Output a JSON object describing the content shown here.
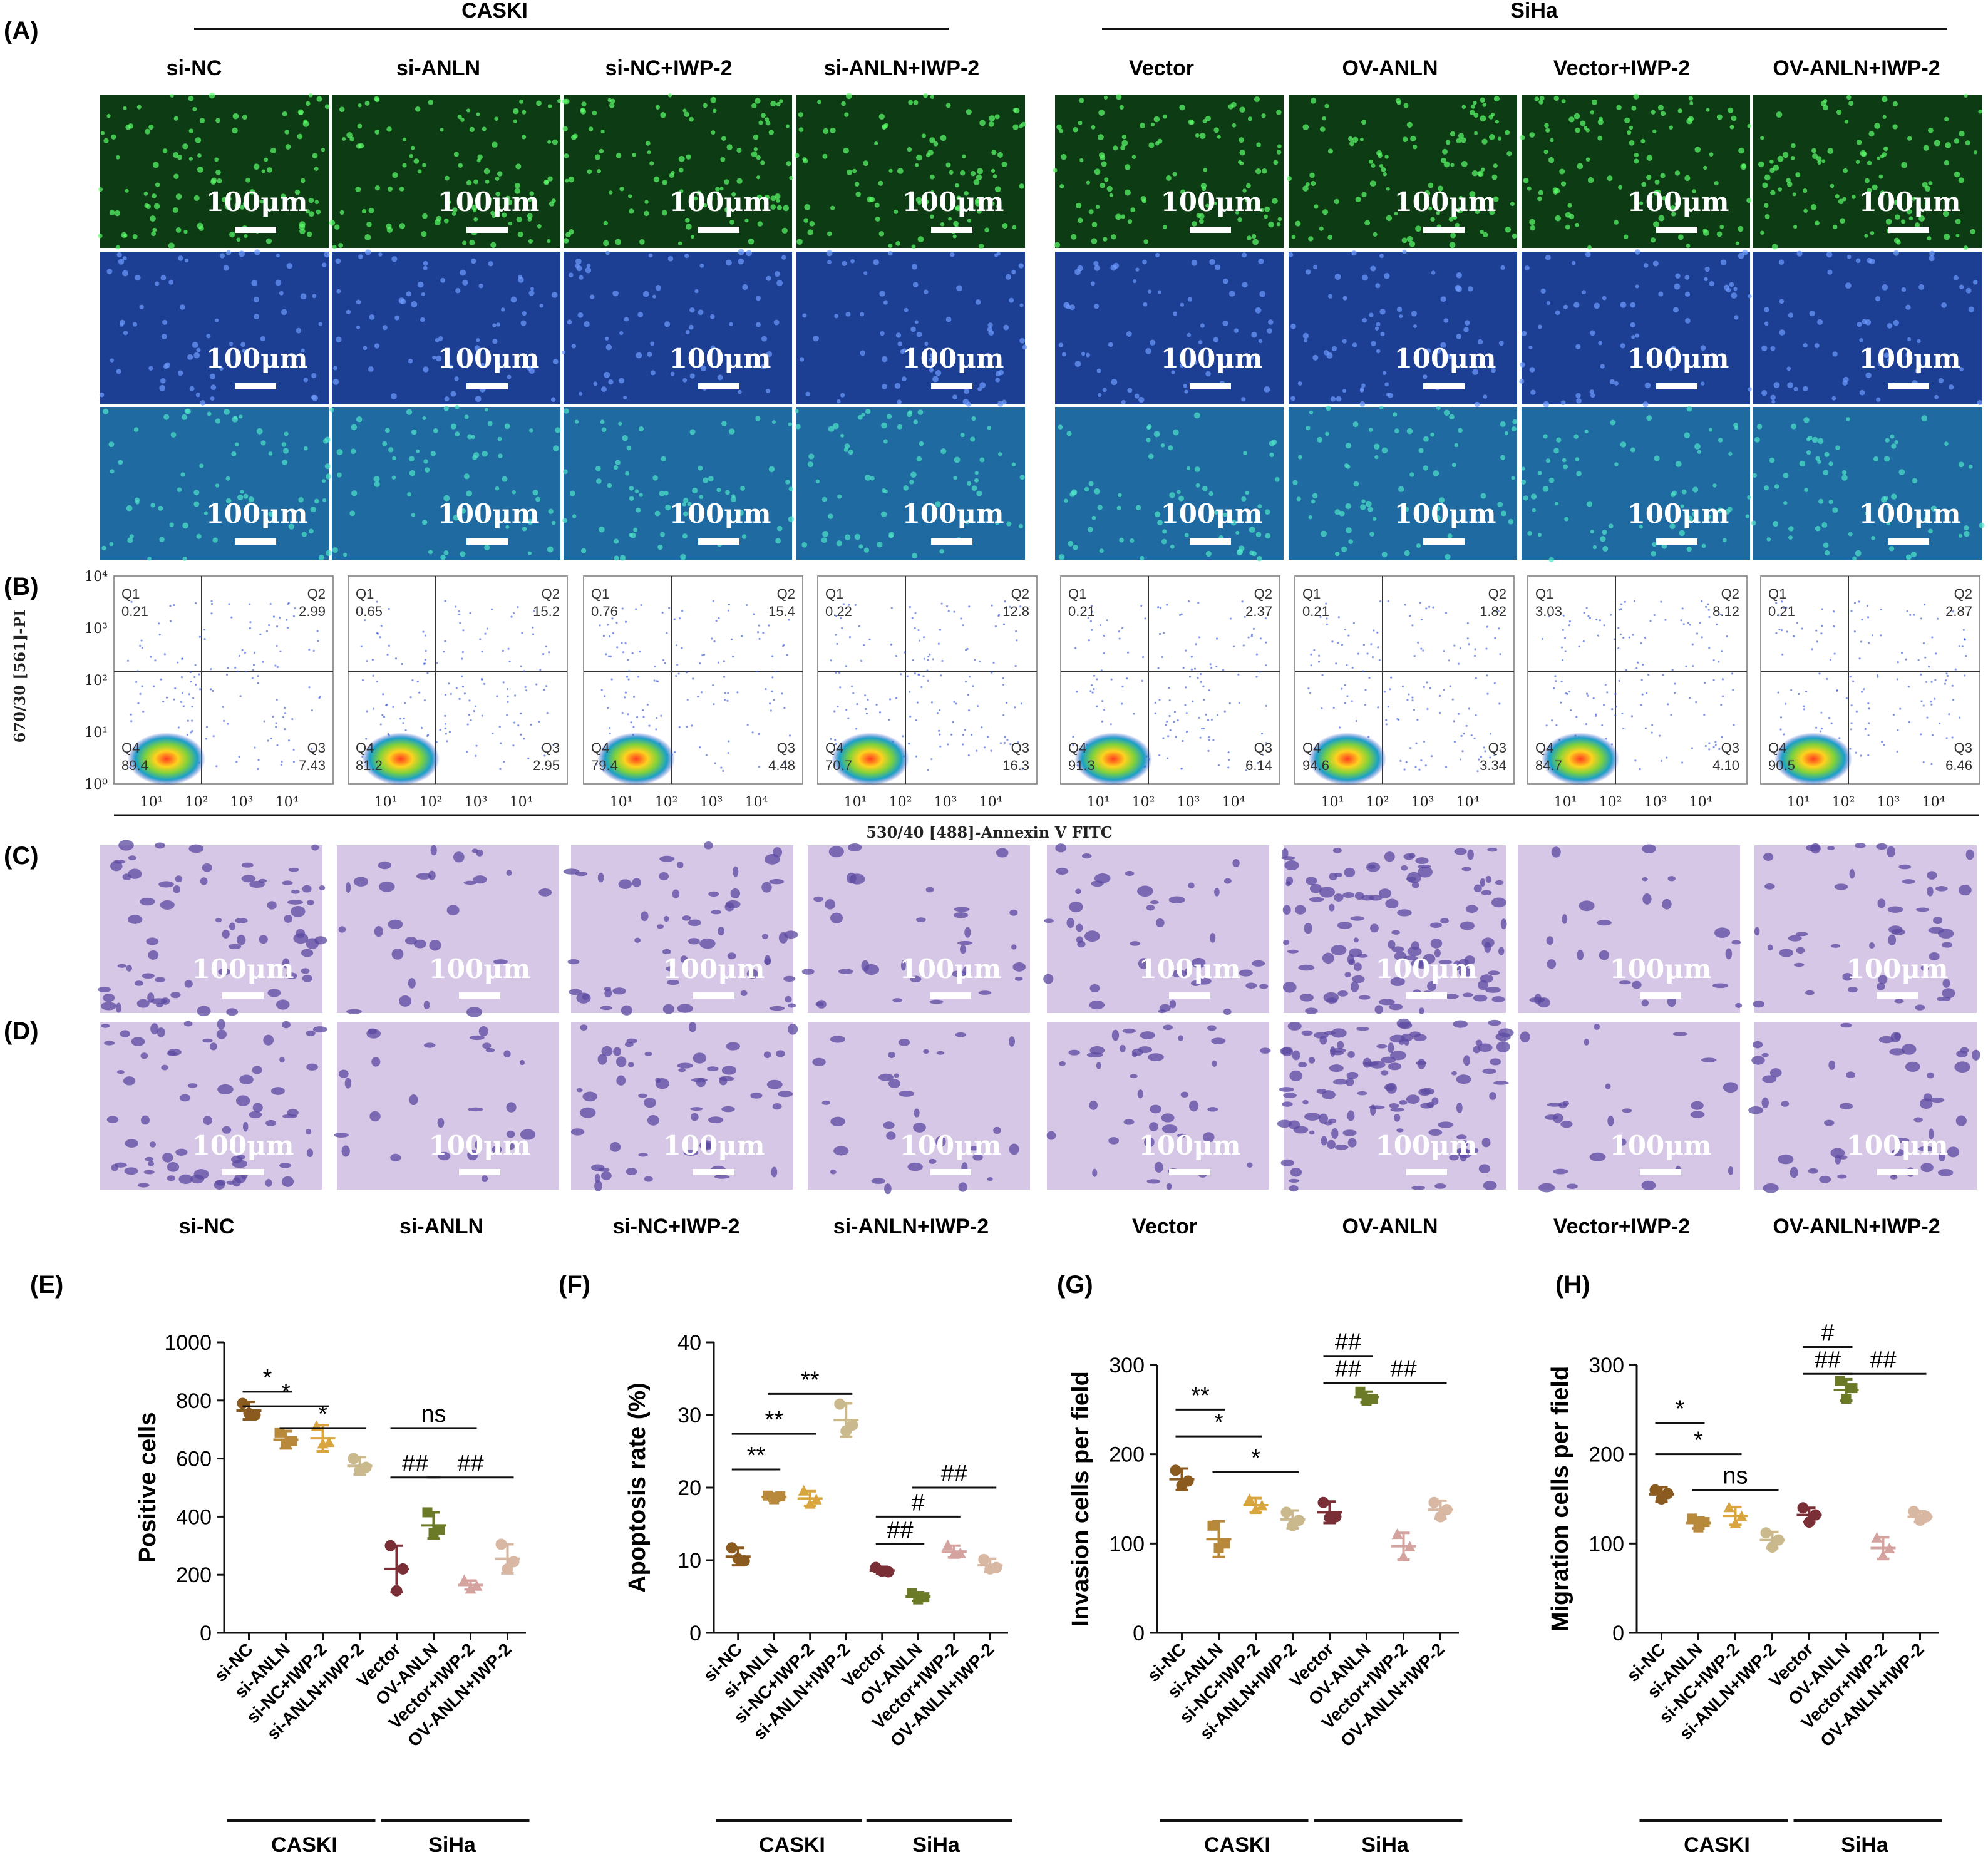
{
  "panel_labels": {
    "A": "(A)",
    "B": "(B)",
    "C": "(C)",
    "D": "(D)",
    "E": "(E)",
    "F": "(F)",
    "G": "(G)",
    "H": "(H)"
  },
  "cell_lines": {
    "left": "CASKI",
    "right": "SiHa"
  },
  "conditions": [
    "si-NC",
    "si-ANLN",
    "si-NC+IWP-2",
    "si-ANLN+IWP-2",
    "Vector",
    "OV-ANLN",
    "Vector+IWP-2",
    "OV-ANLN+IWP-2"
  ],
  "scale_bar": "100μm",
  "flow": {
    "y_axis_label": "670/30 [561]-PI",
    "x_axis_label": "530/40 [488]-Annexin V FITC",
    "y_ticks": [
      "10⁰",
      "10¹",
      "10²",
      "10³",
      "10⁴"
    ],
    "x_ticks": [
      "10¹",
      "10²",
      "10³",
      "10⁴"
    ],
    "quadrant_names": [
      "Q1",
      "Q2",
      "Q3",
      "Q4"
    ],
    "plots": [
      {
        "Q1": "0.21",
        "Q2": "2.99",
        "Q3": "7.43",
        "Q4": "89.4"
      },
      {
        "Q1": "0.65",
        "Q2": "15.2",
        "Q3": "2.95",
        "Q4": "81.2"
      },
      {
        "Q1": "0.76",
        "Q2": "15.4",
        "Q3": "4.48",
        "Q4": "79.4"
      },
      {
        "Q1": "0.22",
        "Q2": "12.8",
        "Q3": "16.3",
        "Q4": "70.7"
      },
      {
        "Q1": "0.21",
        "Q2": "2.37",
        "Q3": "6.14",
        "Q4": "91.3"
      },
      {
        "Q1": "0.21",
        "Q2": "1.82",
        "Q3": "3.34",
        "Q4": "94.6"
      },
      {
        "Q1": "3.03",
        "Q2": "8.12",
        "Q3": "4.10",
        "Q4": "84.7"
      },
      {
        "Q1": "0.21",
        "Q2": "2.87",
        "Q3": "6.46",
        "Q4": "90.5"
      }
    ]
  },
  "colors": {
    "group_colors": [
      "#8B5A1F",
      "#B8893A",
      "#D9A53F",
      "#C9B98C",
      "#7A2E36",
      "#6B7A26",
      "#D4A3A0",
      "#D9B8A3"
    ],
    "fluor_green": "#0d3b14",
    "fluor_blue": "#1c3f94",
    "fluor_merge": "#1f6aa0",
    "stain_bg": "#d6c7e6",
    "stain_cell": "#5b4aa0"
  },
  "chart_data": [
    {
      "id": "E",
      "type": "scatter",
      "ylabel": "Positive cells",
      "ylim": [
        0,
        1000
      ],
      "yticks": [
        "0",
        "200",
        "400",
        "600",
        "800",
        "1000"
      ],
      "categories": [
        "si-NC",
        "si-ANLN",
        "si-NC+IWP-2",
        "si-ANLN+IWP-2",
        "Vector",
        "OV-ANLN",
        "Vector+IWP-2",
        "OV-ANLN+IWP-2"
      ],
      "means": [
        765,
        665,
        670,
        575,
        220,
        370,
        165,
        255
      ],
      "errors": [
        30,
        30,
        45,
        30,
        80,
        45,
        15,
        50
      ],
      "points": [
        [
          790,
          755,
          750
        ],
        [
          690,
          650,
          660
        ],
        [
          710,
          650,
          655
        ],
        [
          600,
          560,
          570
        ],
        [
          300,
          145,
          220
        ],
        [
          415,
          345,
          355
        ],
        [
          180,
          150,
          160
        ],
        [
          305,
          220,
          245
        ]
      ],
      "significance": [
        {
          "from": 0,
          "to": 1,
          "label": "*",
          "y": 830
        },
        {
          "from": 0,
          "to": 2,
          "label": "*",
          "y": 780
        },
        {
          "from": 1,
          "to": 3,
          "label": "*",
          "y": 705
        },
        {
          "from": 4,
          "to": 6,
          "label": "ns",
          "y": 705
        },
        {
          "from": 4,
          "to": 5,
          "label": "##",
          "y": 535
        },
        {
          "from": 5,
          "to": 7,
          "label": "##",
          "y": 535
        }
      ],
      "group_labels": [
        "CASKI",
        "SiHa"
      ]
    },
    {
      "id": "F",
      "type": "scatter",
      "ylabel": "Apoptosis rate (%)",
      "ylim": [
        0,
        40
      ],
      "yticks": [
        "0",
        "10",
        "20",
        "30",
        "40"
      ],
      "categories": [
        "si-NC",
        "si-ANLN",
        "si-NC+IWP-2",
        "si-ANLN+IWP-2",
        "Vector",
        "OV-ANLN",
        "Vector+IWP-2",
        "OV-ANLN+IWP-2"
      ],
      "means": [
        10.5,
        18.7,
        18.5,
        29.3,
        8.6,
        5.0,
        11.2,
        9.3
      ],
      "errors": [
        1.2,
        0.5,
        1.0,
        2.3,
        0.5,
        0.6,
        0.8,
        0.9
      ],
      "points": [
        [
          11.7,
          10.2,
          9.9
        ],
        [
          18.9,
          18.4,
          18.8
        ],
        [
          19.5,
          17.7,
          18.3
        ],
        [
          31.5,
          27.8,
          28.6
        ],
        [
          9.0,
          8.5,
          8.4
        ],
        [
          5.5,
          4.6,
          4.9
        ],
        [
          12.0,
          10.8,
          10.9
        ],
        [
          10.1,
          8.8,
          9.0
        ]
      ],
      "significance": [
        {
          "from": 0,
          "to": 1,
          "label": "**",
          "y": 22.5
        },
        {
          "from": 0,
          "to": 2,
          "label": "**",
          "y": 27.4
        },
        {
          "from": 1,
          "to": 3,
          "label": "**",
          "y": 32.9
        },
        {
          "from": 4,
          "to": 5,
          "label": "##",
          "y": 12.2
        },
        {
          "from": 4,
          "to": 6,
          "label": "#",
          "y": 16.0
        },
        {
          "from": 5,
          "to": 7,
          "label": "##",
          "y": 20.0
        }
      ],
      "group_labels": [
        "CASKI",
        "SiHa"
      ]
    },
    {
      "id": "G",
      "type": "scatter",
      "ylabel": "Invasion cells per field",
      "ylim": [
        0,
        300
      ],
      "yticks": [
        "0",
        "100",
        "200",
        "300"
      ],
      "categories": [
        "si-NC",
        "si-ANLN",
        "si-NC+IWP-2",
        "si-ANLN+IWP-2",
        "Vector",
        "OV-ANLN",
        "Vector+IWP-2",
        "OV-ANLN+IWP-2"
      ],
      "means": [
        172,
        105,
        143,
        127,
        135,
        264,
        97,
        138
      ],
      "errors": [
        12,
        20,
        8,
        10,
        12,
        6,
        15,
        10
      ],
      "points": [
        [
          182,
          165,
          170
        ],
        [
          120,
          95,
          100
        ],
        [
          149,
          138,
          142
        ],
        [
          135,
          120,
          126
        ],
        [
          146,
          129,
          130
        ],
        [
          270,
          260,
          262
        ],
        [
          110,
          85,
          96
        ],
        [
          146,
          130,
          138
        ]
      ],
      "significance": [
        {
          "from": 0,
          "to": 1,
          "label": "**",
          "y": 250
        },
        {
          "from": 0,
          "to": 2,
          "label": "*",
          "y": 220
        },
        {
          "from": 1,
          "to": 3,
          "label": "*",
          "y": 180
        },
        {
          "from": 4,
          "to": 5,
          "label": "##",
          "y": 310
        },
        {
          "from": 4,
          "to": 5,
          "label": "##",
          "y": 280
        },
        {
          "from": 5,
          "to": 7,
          "label": "##",
          "y": 280
        }
      ],
      "group_labels": [
        "CASKI",
        "SiHa"
      ]
    },
    {
      "id": "H",
      "type": "scatter",
      "ylabel": "Migration cells per field",
      "ylim": [
        0,
        300
      ],
      "yticks": [
        "0",
        "100",
        "200",
        "300"
      ],
      "categories": [
        "si-NC",
        "si-ANLN",
        "si-NC+IWP-2",
        "si-ANLN+IWP-2",
        "Vector",
        "OV-ANLN",
        "Vector+IWP-2",
        "OV-ANLN+IWP-2"
      ],
      "means": [
        155,
        123,
        131,
        104,
        132,
        272,
        95,
        130
      ],
      "errors": [
        8,
        6,
        10,
        9,
        8,
        12,
        12,
        6
      ],
      "points": [
        [
          160,
          150,
          156
        ],
        [
          128,
          118,
          124
        ],
        [
          140,
          122,
          130
        ],
        [
          112,
          96,
          104
        ],
        [
          140,
          124,
          132
        ],
        [
          282,
          262,
          274
        ],
        [
          106,
          86,
          94
        ],
        [
          136,
          126,
          130
        ]
      ],
      "significance": [
        {
          "from": 0,
          "to": 1,
          "label": "*",
          "y": 235
        },
        {
          "from": 0,
          "to": 2,
          "label": "*",
          "y": 200
        },
        {
          "from": 1,
          "to": 3,
          "label": "ns",
          "y": 160
        },
        {
          "from": 4,
          "to": 5,
          "label": "#",
          "y": 320
        },
        {
          "from": 4,
          "to": 5,
          "label": "##",
          "y": 290
        },
        {
          "from": 5,
          "to": 7,
          "label": "##",
          "y": 290
        }
      ],
      "group_labels": [
        "CASKI",
        "SiHa"
      ]
    }
  ]
}
